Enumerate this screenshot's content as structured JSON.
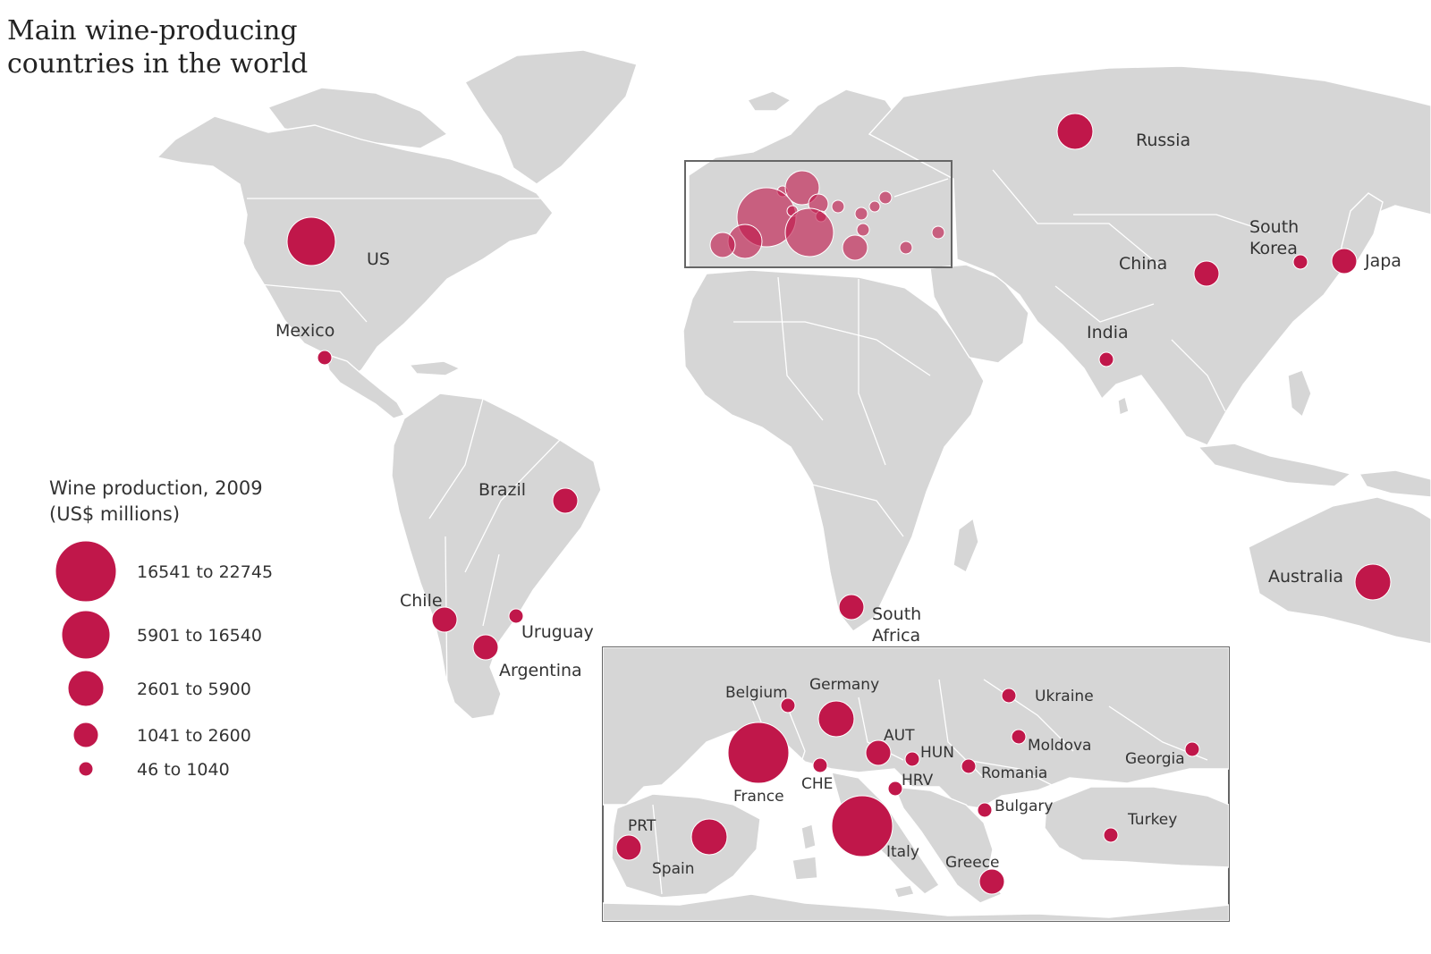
{
  "title": "Main wine-producing countries in the world",
  "legend": {
    "title_line1": "Wine production, 2009",
    "title_line2": "(US$ millions)",
    "classes": [
      {
        "label": "16541 to 22745",
        "range": [
          16541,
          22745
        ]
      },
      {
        "label": "5901 to 16540",
        "range": [
          5901,
          16540
        ]
      },
      {
        "label": "2601 to 5900",
        "range": [
          2601,
          5900
        ]
      },
      {
        "label": "1041 to 2600",
        "range": [
          1041,
          2600
        ]
      },
      {
        "label": "46 to 1040",
        "range": [
          46,
          1040
        ]
      }
    ]
  },
  "world_countries": [
    {
      "label": "US",
      "class": 1
    },
    {
      "label": "Mexico",
      "class": 4
    },
    {
      "label": "Brazil",
      "class": 3
    },
    {
      "label": "Chile",
      "class": 3
    },
    {
      "label": "Uruguay",
      "class": 4
    },
    {
      "label": "Argentina",
      "class": 3
    },
    {
      "label": "South Africa",
      "class": 3
    },
    {
      "label": "Russia",
      "class": 2
    },
    {
      "label": "China",
      "class": 3
    },
    {
      "label": "South Korea",
      "class": 4
    },
    {
      "label": "Japa",
      "class": 3
    },
    {
      "label": "India",
      "class": 4
    },
    {
      "label": "Australia",
      "class": 2
    }
  ],
  "europe_countries": [
    {
      "label": "Belgium",
      "class": 4
    },
    {
      "label": "Germany",
      "class": 2
    },
    {
      "label": "France",
      "class": 0
    },
    {
      "label": "CHE",
      "class": 4
    },
    {
      "label": "AUT",
      "class": 3
    },
    {
      "label": "HUN",
      "class": 4
    },
    {
      "label": "HRV",
      "class": 4
    },
    {
      "label": "Italy",
      "class": 0
    },
    {
      "label": "Spain",
      "class": 2
    },
    {
      "label": "PRT",
      "class": 3
    },
    {
      "label": "Ukraine",
      "class": 4
    },
    {
      "label": "Moldova",
      "class": 4
    },
    {
      "label": "Romania",
      "class": 4
    },
    {
      "label": "Bulgary",
      "class": 4
    },
    {
      "label": "Georgia",
      "class": 4
    },
    {
      "label": "Turkey",
      "class": 4
    },
    {
      "label": "Greece",
      "class": 3
    }
  ],
  "colors": {
    "bubble": "#c0174a",
    "land": "#d6d6d6",
    "frame": "#666666"
  },
  "symbols": [
    "proportional-circle"
  ]
}
